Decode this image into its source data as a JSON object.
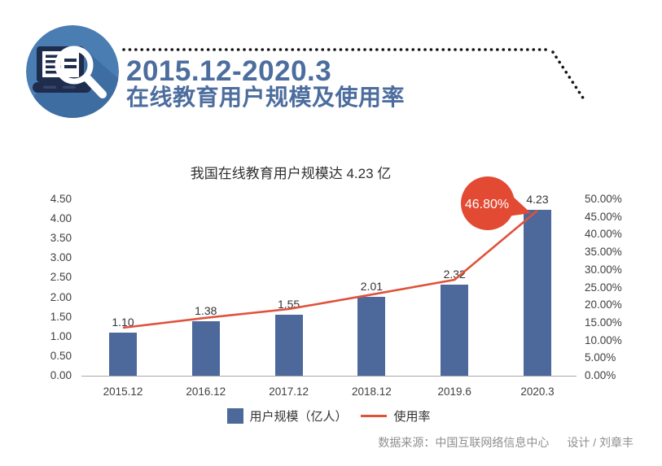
{
  "header": {
    "icon": "laptop-magnifier-icon",
    "title_line1": "2015.12-2020.3",
    "title_line2": "在线教育用户规模及使用率",
    "title_color": "#4c6d9e"
  },
  "chart_data": {
    "type": "bar",
    "combo": "bar+line dual axis",
    "title": "我国在线教育用户规模达 4.23 亿",
    "grid": "off",
    "categories": [
      "2015.12",
      "2016.12",
      "2017.12",
      "2018.12",
      "2019.6",
      "2020.3"
    ],
    "series": [
      {
        "name": "用户规模（亿人）",
        "type": "bar",
        "axis": "left",
        "color": "#4d699c",
        "values": [
          1.1,
          1.38,
          1.55,
          2.01,
          2.32,
          4.23
        ],
        "labels": [
          "1.10",
          "1.38",
          "1.55",
          "2.01",
          "2.32",
          "4.23"
        ]
      },
      {
        "name": "使用率",
        "type": "line",
        "axis": "right",
        "color": "#e0523c",
        "values_percent": [
          13.6,
          16.4,
          18.9,
          23.0,
          27.2,
          46.8
        ],
        "callout": {
          "point": "2020.3",
          "text": "46.80%",
          "fill": "#e24a33",
          "text_color": "#ffffff"
        }
      }
    ],
    "left_axis": {
      "range": [
        0,
        4.5
      ],
      "ticks": [
        "0.00",
        "0.50",
        "1.00",
        "1.50",
        "2.00",
        "2.50",
        "3.00",
        "3.50",
        "4.00",
        "4.50"
      ]
    },
    "right_axis": {
      "range": [
        0,
        50
      ],
      "ticks": [
        "0.00%",
        "5.00%",
        "10.00%",
        "15.00%",
        "20.00%",
        "25.00%",
        "30.00%",
        "35.00%",
        "40.00%",
        "45.00%",
        "50.00%"
      ]
    },
    "legend": {
      "position": "bottom-center",
      "items": [
        {
          "label": "用户规模（亿人）",
          "swatch": "square",
          "color": "#4d699c"
        },
        {
          "label": "使用率",
          "swatch": "line",
          "color": "#e0523c"
        }
      ]
    }
  },
  "footer": {
    "source": "数据来源：中国互联网络信息中心",
    "credit": "设计 / 刘章丰"
  }
}
